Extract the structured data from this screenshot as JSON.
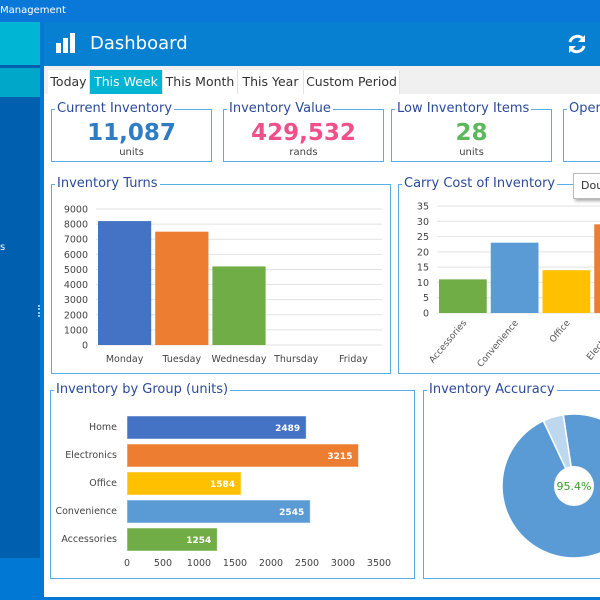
{
  "window": {
    "title": "Management"
  },
  "sidebar": {
    "partial_text": "s"
  },
  "header": {
    "title": "Dashboard",
    "icon": "bar-chart-icon",
    "refresh_icon": "refresh-icon"
  },
  "tabs": [
    {
      "label": "Today"
    },
    {
      "label": "This Week",
      "active": true
    },
    {
      "label": "This Month"
    },
    {
      "label": "This Year"
    },
    {
      "label": "Custom Period"
    }
  ],
  "kpis": [
    {
      "title": "Current Inventory",
      "value": "11,087",
      "unit": "units",
      "color": "#2e7cc4"
    },
    {
      "title": "Inventory Value",
      "value": "429,532",
      "unit": "rands",
      "color": "#f0508a"
    },
    {
      "title": "Low Inventory Items",
      "value": "28",
      "unit": "units",
      "color": "#5cb85c"
    },
    {
      "title": "Oper",
      "value": "",
      "unit": ""
    }
  ],
  "tooltip": {
    "text": "Dou"
  },
  "chart_data": [
    {
      "type": "bar",
      "title": "Inventory Turns",
      "categories": [
        "Monday",
        "Tuesday",
        "Wednesday",
        "Thursday",
        "Friday"
      ],
      "values": [
        8200,
        7500,
        5200,
        0,
        0
      ],
      "colors": [
        "#4472c4",
        "#ed7d31",
        "#70ad47"
      ],
      "ylim": [
        0,
        9000
      ],
      "yticks": [
        0,
        1000,
        2000,
        3000,
        4000,
        5000,
        6000,
        7000,
        8000,
        9000
      ],
      "grid": true
    },
    {
      "type": "bar",
      "title": "Carry Cost of Inventory",
      "categories": [
        "Accessories",
        "Convenience",
        "Office",
        "Electronics"
      ],
      "values": [
        11,
        23,
        14,
        29
      ],
      "colors": [
        "#70ad47",
        "#5b9bd5",
        "#ffc000",
        "#ed7d31"
      ],
      "ylim": [
        0,
        35
      ],
      "yticks": [
        0,
        5,
        10,
        15,
        20,
        25,
        30,
        35
      ],
      "grid": true
    },
    {
      "type": "bar",
      "orientation": "horizontal",
      "title": "Inventory by Group (units)",
      "categories": [
        "Home",
        "Electronics",
        "Office",
        "Convenience",
        "Accessories"
      ],
      "values": [
        2489,
        3215,
        1584,
        2545,
        1254
      ],
      "colors": [
        "#4472c4",
        "#ed7d31",
        "#ffc000",
        "#5b9bd5",
        "#70ad47"
      ],
      "xlim": [
        0,
        3500
      ],
      "xticks": [
        0,
        500,
        1000,
        1500,
        2000,
        2500,
        3000,
        3500
      ],
      "data_labels": true
    },
    {
      "type": "pie",
      "style": "donut",
      "title": "Inventory Accuracy",
      "values": [
        95.4,
        4.6
      ],
      "colors": [
        "#5b9bd5",
        "#bdd7ee"
      ],
      "center_label": "95.4%",
      "center_label_color": "#3a9a2a"
    }
  ]
}
